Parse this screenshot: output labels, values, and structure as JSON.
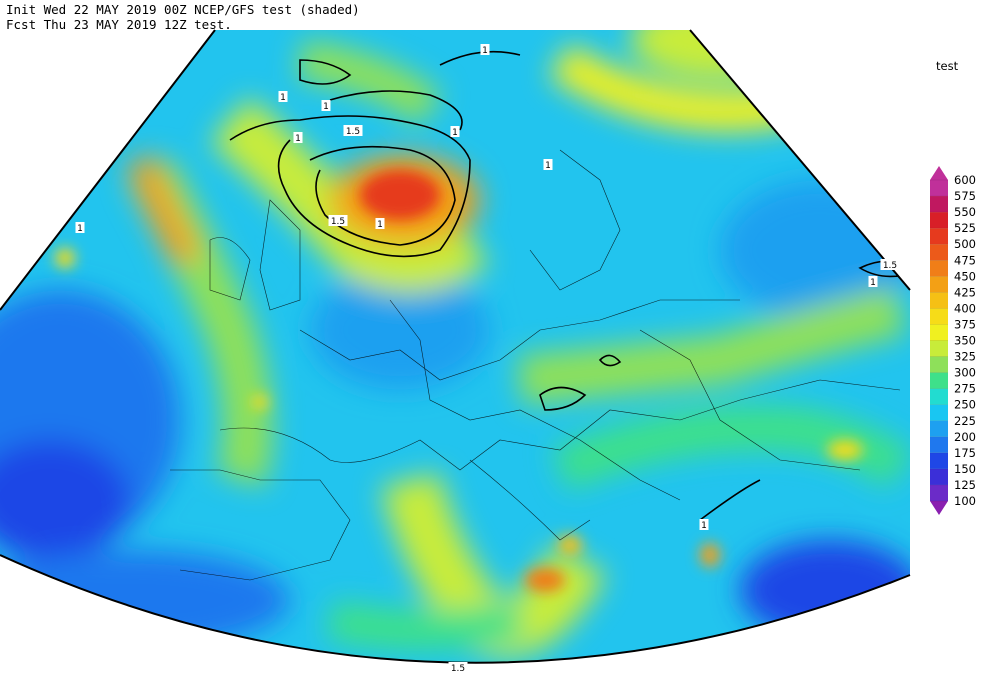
{
  "header": {
    "line1": "Init  Wed 22 MAY 2019 00Z  NCEP/GFS test (shaded)",
    "line2": "Fcst Thu 23 MAY 2019 12Z  test."
  },
  "legend": {
    "title": "test",
    "levels": [
      100,
      125,
      150,
      175,
      200,
      225,
      250,
      275,
      300,
      325,
      350,
      375,
      400,
      425,
      450,
      475,
      500,
      525,
      550,
      575,
      600
    ],
    "colors": [
      "#8a1fb0",
      "#6b2bc8",
      "#3b2fd8",
      "#1f47e6",
      "#1f78ee",
      "#1ea0f0",
      "#19c6f2",
      "#22dcd0",
      "#3ee08a",
      "#8ee05a",
      "#c8ec3a",
      "#f0f020",
      "#f6dc18",
      "#f5c015",
      "#f3a015",
      "#f07e18",
      "#ec5a1a",
      "#e63a1e",
      "#d81f28",
      "#c01860",
      "#c0309a"
    ]
  },
  "contour_labels": [
    "1",
    "1",
    "1",
    "1",
    "1.5",
    "1",
    "1",
    "1.5",
    "1",
    "1",
    "1.5",
    "1",
    "1",
    "1.5"
  ]
}
